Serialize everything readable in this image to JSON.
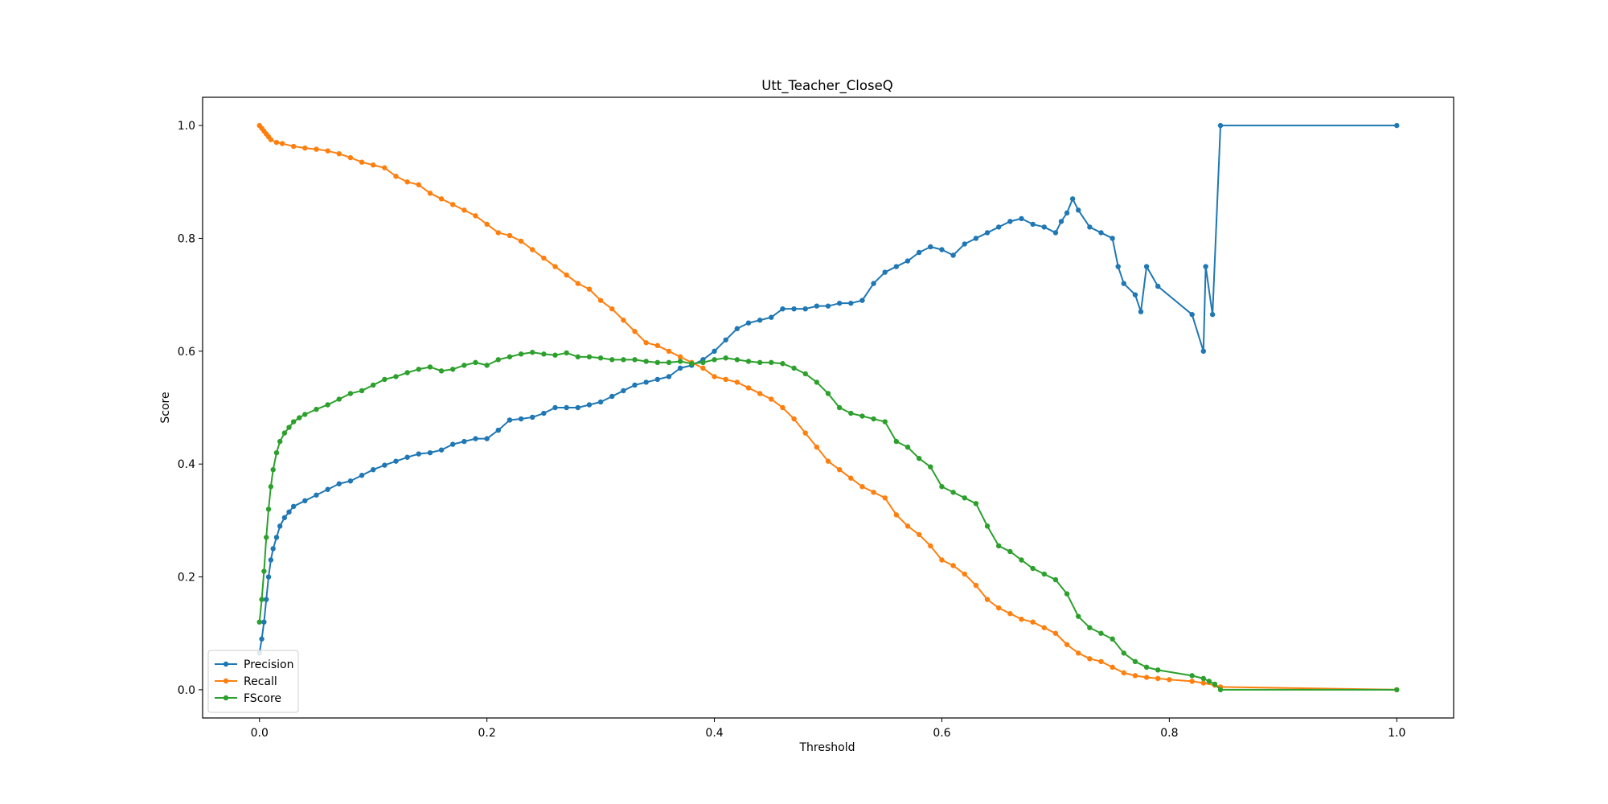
{
  "chart_data": {
    "type": "line",
    "title": "Utt_Teacher_CloseQ",
    "xlabel": "Threshold",
    "ylabel": "Score",
    "xlim": [
      -0.05,
      1.05
    ],
    "ylim": [
      -0.05,
      1.05
    ],
    "xticks": [
      0.0,
      0.2,
      0.4,
      0.6,
      0.8,
      1.0
    ],
    "yticks": [
      0.0,
      0.2,
      0.4,
      0.6,
      0.8,
      1.0
    ],
    "xtick_labels": [
      "0.0",
      "0.2",
      "0.4",
      "0.6",
      "0.8",
      "1.0"
    ],
    "ytick_labels": [
      "0.0",
      "0.2",
      "0.4",
      "0.6",
      "0.8",
      "1.0"
    ],
    "grid": false,
    "legend_position": "lower-left",
    "series": [
      {
        "name": "Precision",
        "color": "#1f77b4",
        "x": [
          0.0,
          0.002,
          0.004,
          0.006,
          0.008,
          0.01,
          0.012,
          0.015,
          0.018,
          0.022,
          0.026,
          0.03,
          0.04,
          0.05,
          0.06,
          0.07,
          0.08,
          0.09,
          0.1,
          0.11,
          0.12,
          0.13,
          0.14,
          0.15,
          0.16,
          0.17,
          0.18,
          0.19,
          0.2,
          0.21,
          0.22,
          0.23,
          0.24,
          0.25,
          0.26,
          0.27,
          0.28,
          0.29,
          0.3,
          0.31,
          0.32,
          0.33,
          0.34,
          0.35,
          0.36,
          0.37,
          0.38,
          0.39,
          0.4,
          0.41,
          0.42,
          0.43,
          0.44,
          0.45,
          0.46,
          0.47,
          0.48,
          0.49,
          0.5,
          0.51,
          0.52,
          0.53,
          0.54,
          0.55,
          0.56,
          0.57,
          0.58,
          0.59,
          0.6,
          0.61,
          0.62,
          0.63,
          0.64,
          0.65,
          0.66,
          0.67,
          0.68,
          0.69,
          0.7,
          0.705,
          0.71,
          0.715,
          0.72,
          0.73,
          0.74,
          0.75,
          0.755,
          0.76,
          0.77,
          0.775,
          0.78,
          0.79,
          0.82,
          0.83,
          0.832,
          0.838,
          0.845,
          1.0
        ],
        "y": [
          0.065,
          0.09,
          0.12,
          0.16,
          0.2,
          0.23,
          0.25,
          0.27,
          0.29,
          0.305,
          0.315,
          0.325,
          0.335,
          0.345,
          0.355,
          0.365,
          0.37,
          0.38,
          0.39,
          0.398,
          0.405,
          0.412,
          0.418,
          0.42,
          0.425,
          0.435,
          0.44,
          0.445,
          0.445,
          0.46,
          0.478,
          0.48,
          0.483,
          0.49,
          0.5,
          0.5,
          0.5,
          0.505,
          0.51,
          0.52,
          0.53,
          0.54,
          0.545,
          0.55,
          0.555,
          0.57,
          0.575,
          0.585,
          0.6,
          0.62,
          0.64,
          0.65,
          0.655,
          0.66,
          0.675,
          0.675,
          0.675,
          0.68,
          0.68,
          0.685,
          0.685,
          0.69,
          0.72,
          0.74,
          0.75,
          0.76,
          0.775,
          0.785,
          0.78,
          0.77,
          0.79,
          0.8,
          0.81,
          0.82,
          0.83,
          0.835,
          0.825,
          0.82,
          0.81,
          0.83,
          0.845,
          0.87,
          0.85,
          0.82,
          0.81,
          0.8,
          0.75,
          0.72,
          0.7,
          0.67,
          0.75,
          0.715,
          0.665,
          0.6,
          0.75,
          0.665,
          1.0,
          1.0
        ]
      },
      {
        "name": "Recall",
        "color": "#ff7f0e",
        "x": [
          0.0,
          0.002,
          0.004,
          0.006,
          0.008,
          0.01,
          0.015,
          0.02,
          0.03,
          0.04,
          0.05,
          0.06,
          0.07,
          0.08,
          0.09,
          0.1,
          0.11,
          0.12,
          0.13,
          0.14,
          0.15,
          0.16,
          0.17,
          0.18,
          0.19,
          0.2,
          0.21,
          0.22,
          0.23,
          0.24,
          0.25,
          0.26,
          0.27,
          0.28,
          0.29,
          0.3,
          0.31,
          0.32,
          0.33,
          0.34,
          0.35,
          0.36,
          0.37,
          0.38,
          0.39,
          0.4,
          0.41,
          0.42,
          0.43,
          0.44,
          0.45,
          0.46,
          0.47,
          0.48,
          0.49,
          0.5,
          0.51,
          0.52,
          0.53,
          0.54,
          0.55,
          0.56,
          0.57,
          0.58,
          0.59,
          0.6,
          0.61,
          0.62,
          0.63,
          0.64,
          0.65,
          0.66,
          0.67,
          0.68,
          0.69,
          0.7,
          0.71,
          0.72,
          0.73,
          0.74,
          0.75,
          0.76,
          0.77,
          0.78,
          0.79,
          0.8,
          0.82,
          0.83,
          0.84,
          0.845,
          1.0
        ],
        "y": [
          1.0,
          0.995,
          0.99,
          0.985,
          0.98,
          0.975,
          0.97,
          0.968,
          0.963,
          0.96,
          0.958,
          0.955,
          0.95,
          0.943,
          0.935,
          0.93,
          0.925,
          0.91,
          0.9,
          0.895,
          0.88,
          0.87,
          0.86,
          0.85,
          0.84,
          0.825,
          0.81,
          0.805,
          0.795,
          0.78,
          0.765,
          0.75,
          0.735,
          0.72,
          0.71,
          0.69,
          0.675,
          0.655,
          0.635,
          0.615,
          0.61,
          0.6,
          0.59,
          0.58,
          0.57,
          0.555,
          0.55,
          0.545,
          0.535,
          0.525,
          0.515,
          0.5,
          0.48,
          0.455,
          0.43,
          0.405,
          0.39,
          0.375,
          0.36,
          0.35,
          0.34,
          0.31,
          0.29,
          0.275,
          0.255,
          0.23,
          0.22,
          0.205,
          0.185,
          0.16,
          0.145,
          0.135,
          0.125,
          0.12,
          0.11,
          0.1,
          0.08,
          0.065,
          0.055,
          0.05,
          0.04,
          0.03,
          0.025,
          0.022,
          0.02,
          0.018,
          0.015,
          0.012,
          0.008,
          0.005,
          0.0
        ]
      },
      {
        "name": "FScore",
        "color": "#2ca02c",
        "x": [
          0.0,
          0.002,
          0.004,
          0.006,
          0.008,
          0.01,
          0.012,
          0.015,
          0.018,
          0.022,
          0.026,
          0.03,
          0.035,
          0.04,
          0.05,
          0.06,
          0.07,
          0.08,
          0.09,
          0.1,
          0.11,
          0.12,
          0.13,
          0.14,
          0.15,
          0.16,
          0.17,
          0.18,
          0.19,
          0.2,
          0.21,
          0.22,
          0.23,
          0.24,
          0.25,
          0.26,
          0.27,
          0.28,
          0.29,
          0.3,
          0.31,
          0.32,
          0.33,
          0.34,
          0.35,
          0.36,
          0.37,
          0.38,
          0.39,
          0.4,
          0.41,
          0.42,
          0.43,
          0.44,
          0.45,
          0.46,
          0.47,
          0.48,
          0.49,
          0.5,
          0.51,
          0.52,
          0.53,
          0.54,
          0.55,
          0.56,
          0.57,
          0.58,
          0.59,
          0.6,
          0.61,
          0.62,
          0.63,
          0.64,
          0.65,
          0.66,
          0.67,
          0.68,
          0.69,
          0.7,
          0.71,
          0.72,
          0.73,
          0.74,
          0.75,
          0.76,
          0.77,
          0.78,
          0.79,
          0.82,
          0.83,
          0.835,
          0.84,
          0.845,
          1.0
        ],
        "y": [
          0.12,
          0.16,
          0.21,
          0.27,
          0.32,
          0.36,
          0.39,
          0.42,
          0.44,
          0.455,
          0.465,
          0.475,
          0.482,
          0.488,
          0.497,
          0.505,
          0.515,
          0.525,
          0.53,
          0.54,
          0.55,
          0.555,
          0.562,
          0.568,
          0.572,
          0.565,
          0.568,
          0.575,
          0.58,
          0.575,
          0.585,
          0.59,
          0.595,
          0.598,
          0.595,
          0.593,
          0.597,
          0.59,
          0.59,
          0.588,
          0.585,
          0.585,
          0.585,
          0.582,
          0.58,
          0.58,
          0.582,
          0.578,
          0.58,
          0.585,
          0.588,
          0.585,
          0.582,
          0.58,
          0.58,
          0.578,
          0.57,
          0.56,
          0.545,
          0.525,
          0.5,
          0.49,
          0.485,
          0.48,
          0.475,
          0.44,
          0.43,
          0.41,
          0.395,
          0.36,
          0.35,
          0.34,
          0.33,
          0.29,
          0.255,
          0.245,
          0.23,
          0.215,
          0.205,
          0.195,
          0.17,
          0.13,
          0.11,
          0.1,
          0.09,
          0.065,
          0.05,
          0.04,
          0.035,
          0.025,
          0.02,
          0.015,
          0.01,
          0.0,
          0.0
        ]
      }
    ]
  }
}
